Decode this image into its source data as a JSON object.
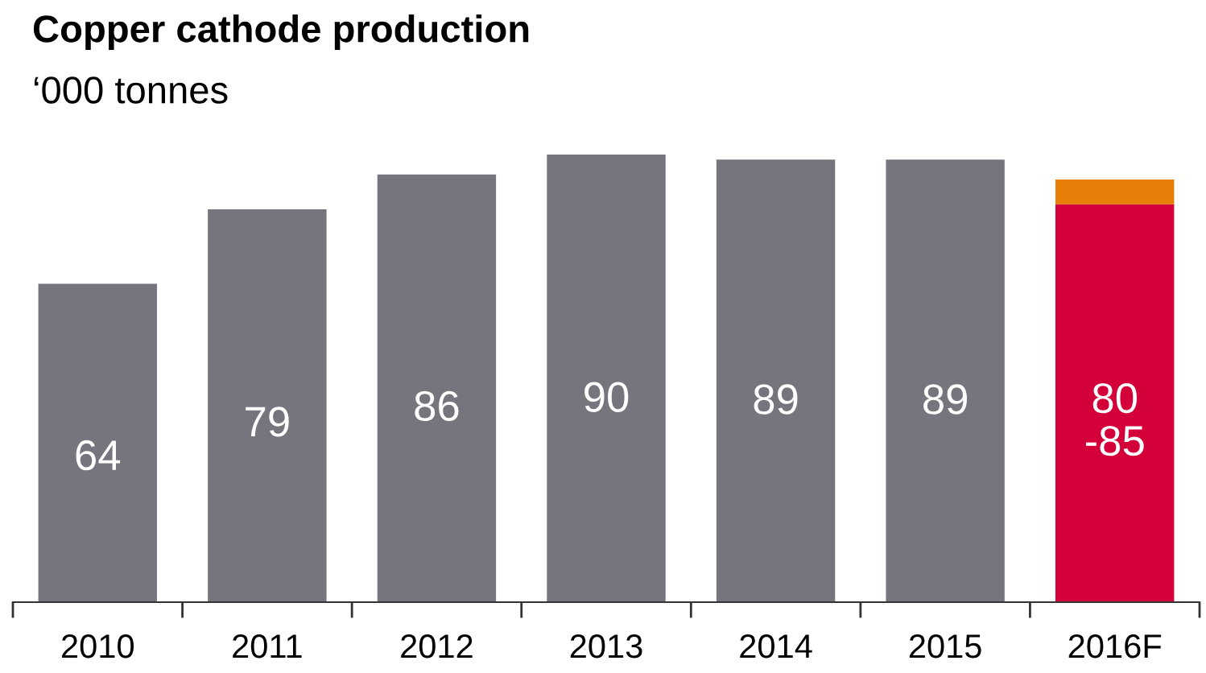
{
  "chart_data": {
    "type": "bar",
    "title": "Copper cathode production",
    "subtitle": "‘000 tonnes",
    "categories": [
      "2010",
      "2011",
      "2012",
      "2013",
      "2014",
      "2015",
      "2016F"
    ],
    "stacked": true,
    "grid": false,
    "legend": false,
    "series": [
      {
        "color": "#75757d",
        "values": [
          64,
          79,
          86,
          90,
          89,
          89,
          null
        ],
        "value_labels": [
          "64",
          "79",
          "86",
          "90",
          "89",
          "89",
          null
        ]
      },
      {
        "color": "#d4003a",
        "values": [
          null,
          null,
          null,
          null,
          null,
          null,
          80
        ],
        "value_labels": [
          null,
          null,
          null,
          null,
          null,
          null,
          "80\n-85"
        ]
      },
      {
        "color": "#e67e07",
        "values": [
          null,
          null,
          null,
          null,
          null,
          null,
          5
        ]
      }
    ]
  }
}
